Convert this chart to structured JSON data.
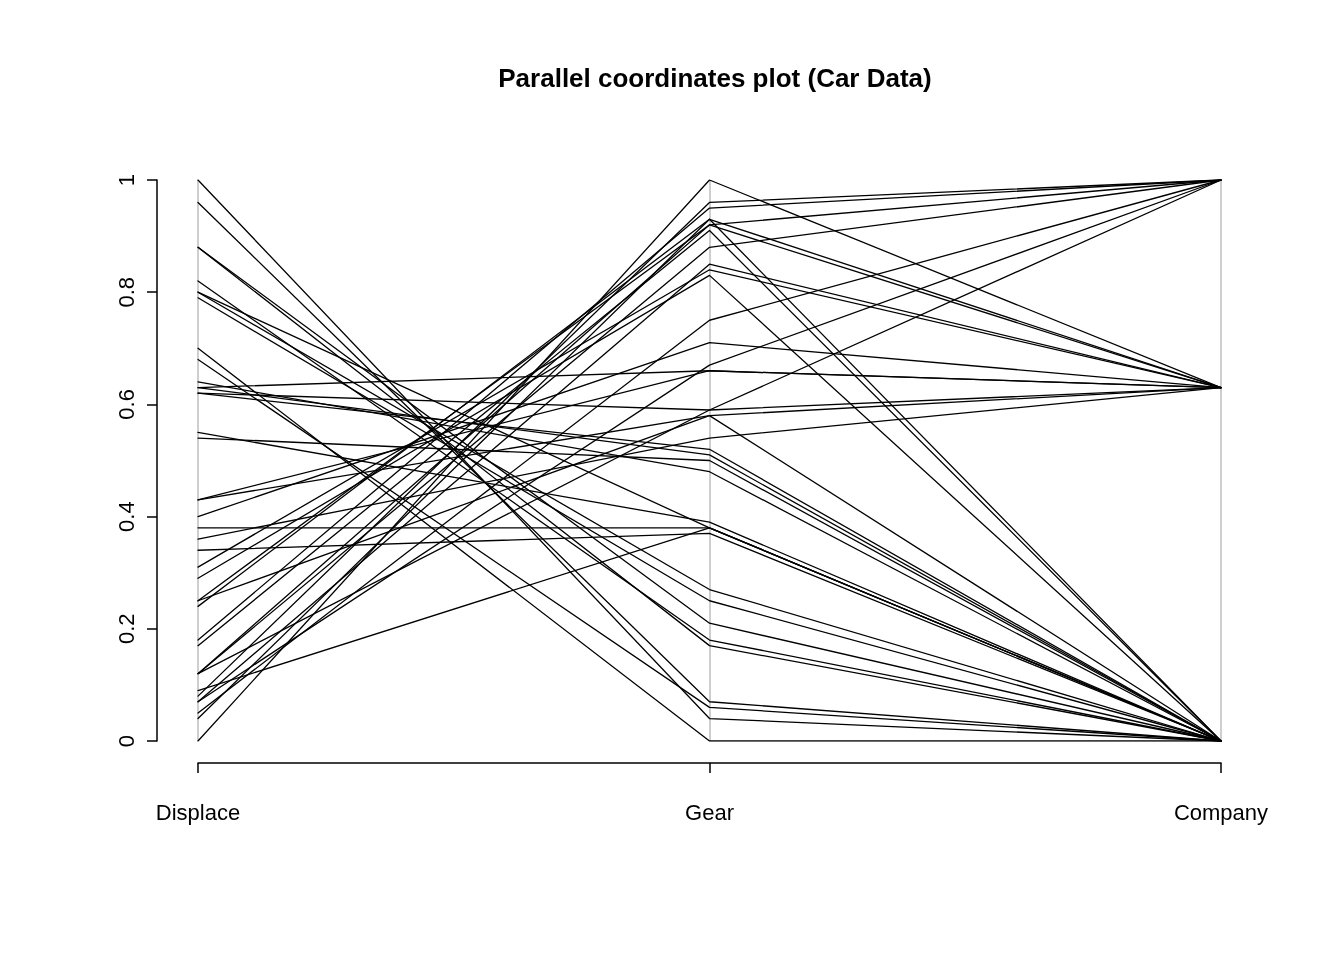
{
  "chart_data": {
    "type": "line",
    "title": "Parallel coordinates plot (Car Data)",
    "categories": [
      "Displace",
      "Gear",
      "Company"
    ],
    "ylim": [
      0,
      1
    ],
    "yticks": [
      0,
      0.2,
      0.4,
      0.6,
      0.8,
      1
    ],
    "grid": "x",
    "marker": "none",
    "line_style": "solid",
    "series": [
      {
        "color": "#000000",
        "values": [
          1.0,
          0.04,
          0
        ]
      },
      {
        "color": "#000000",
        "values": [
          0.96,
          0.07,
          0
        ]
      },
      {
        "color": "#000000",
        "values": [
          0.88,
          0.17,
          0
        ]
      },
      {
        "color": "#000000",
        "values": [
          0.88,
          0.21,
          0
        ]
      },
      {
        "color": "#000000",
        "values": [
          0.82,
          0.18,
          0
        ]
      },
      {
        "color": "#000000",
        "values": [
          0.8,
          0.38,
          0
        ]
      },
      {
        "color": "#000000",
        "values": [
          0.8,
          0.27,
          0
        ]
      },
      {
        "color": "#000000",
        "values": [
          0.79,
          0.25,
          0
        ]
      },
      {
        "color": "#000000",
        "values": [
          0.7,
          0.0,
          0
        ]
      },
      {
        "color": "#000000",
        "values": [
          0.68,
          0.06,
          0
        ]
      },
      {
        "color": "#000000",
        "values": [
          0.64,
          0.48,
          0
        ]
      },
      {
        "color": "#000000",
        "values": [
          0.63,
          0.51,
          0
        ]
      },
      {
        "color": "#000000",
        "values": [
          0.62,
          0.52,
          0
        ]
      },
      {
        "color": "#000000",
        "values": [
          0.55,
          0.39,
          0
        ]
      },
      {
        "color": "#000000",
        "values": [
          0.54,
          0.5,
          0
        ]
      },
      {
        "color": "#000000",
        "values": [
          0.62,
          0.59,
          0.63
        ]
      },
      {
        "color": "#000000",
        "values": [
          0.63,
          0.66,
          0.63
        ]
      },
      {
        "color": "#000000",
        "values": [
          0.43,
          0.58,
          0.63
        ]
      },
      {
        "color": "#000000",
        "values": [
          0.4,
          0.71,
          0.63
        ]
      },
      {
        "color": "#000000",
        "values": [
          0.38,
          0.38,
          0
        ]
      },
      {
        "color": "#000000",
        "values": [
          0.36,
          0.54,
          0.63
        ]
      },
      {
        "color": "#000000",
        "values": [
          0.34,
          0.37,
          0
        ]
      },
      {
        "color": "#000000",
        "values": [
          0.31,
          0.84,
          0.63
        ]
      },
      {
        "color": "#000000",
        "values": [
          0.29,
          0.83,
          0
        ]
      },
      {
        "color": "#000000",
        "values": [
          0.25,
          0.92,
          1
        ]
      },
      {
        "color": "#000000",
        "values": [
          0.24,
          0.93,
          0.63
        ]
      },
      {
        "color": "#000000",
        "values": [
          0.25,
          0.58,
          0
        ]
      },
      {
        "color": "#000000",
        "values": [
          0.18,
          0.95,
          1
        ]
      },
      {
        "color": "#000000",
        "values": [
          0.17,
          0.91,
          0
        ]
      },
      {
        "color": "#000000",
        "values": [
          0.12,
          0.88,
          1
        ]
      },
      {
        "color": "#000000",
        "values": [
          0.12,
          0.92,
          0.63
        ]
      },
      {
        "color": "#000000",
        "values": [
          0.08,
          0.96,
          1
        ]
      },
      {
        "color": "#000000",
        "values": [
          0.07,
          0.85,
          0.63
        ]
      },
      {
        "color": "#000000",
        "values": [
          0.05,
          0.75,
          1
        ]
      },
      {
        "color": "#000000",
        "values": [
          0.04,
          0.93,
          0
        ]
      },
      {
        "color": "#000000",
        "values": [
          0.0,
          1.0,
          0.63
        ]
      },
      {
        "color": "#000000",
        "values": [
          0.12,
          0.59,
          1
        ]
      },
      {
        "color": "#000000",
        "values": [
          0.07,
          0.67,
          1
        ]
      },
      {
        "color": "#000000",
        "values": [
          0.43,
          0.66,
          0.63
        ]
      },
      {
        "color": "#000000",
        "values": [
          0.09,
          0.38,
          0
        ]
      }
    ]
  }
}
